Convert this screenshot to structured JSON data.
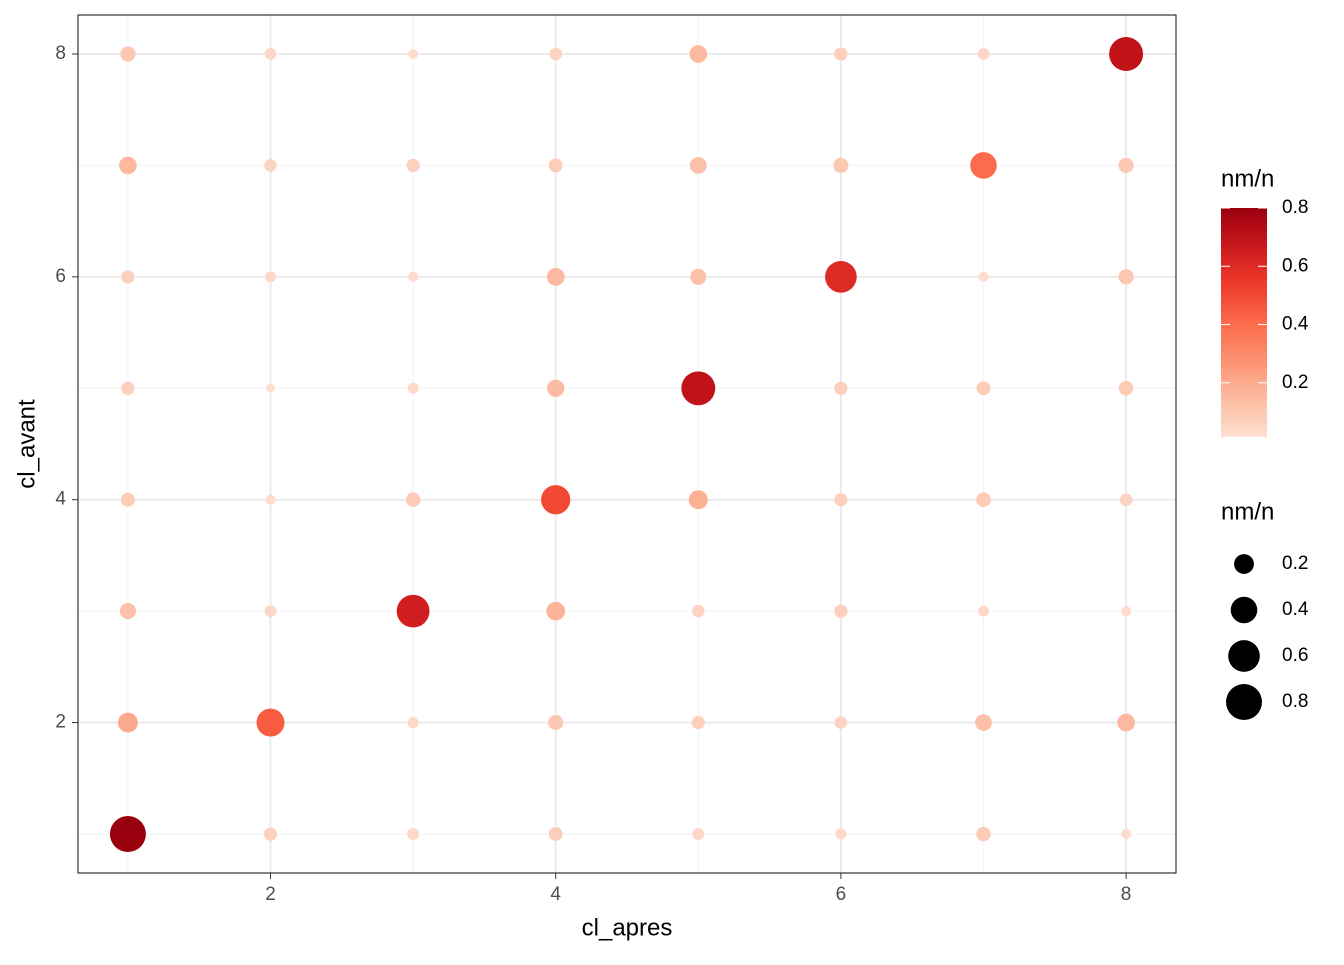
{
  "chart_data": {
    "type": "scatter",
    "x_label": "cl_apres",
    "y_label": "cl_avant",
    "x": [
      1,
      2,
      3,
      4,
      5,
      6,
      7,
      8,
      1,
      2,
      3,
      4,
      5,
      6,
      7,
      8,
      1,
      2,
      3,
      4,
      5,
      6,
      7,
      8,
      1,
      2,
      3,
      4,
      5,
      6,
      7,
      8,
      1,
      2,
      3,
      4,
      5,
      6,
      7,
      8,
      1,
      2,
      3,
      4,
      5,
      6,
      7,
      8,
      1,
      2,
      3,
      4,
      5,
      6,
      7,
      8,
      1,
      2,
      3,
      4,
      5,
      6,
      7,
      8
    ],
    "y": [
      1,
      1,
      1,
      1,
      1,
      1,
      1,
      1,
      2,
      2,
      2,
      2,
      2,
      2,
      2,
      2,
      3,
      3,
      3,
      3,
      3,
      3,
      3,
      3,
      4,
      4,
      4,
      4,
      4,
      4,
      4,
      4,
      5,
      5,
      5,
      5,
      5,
      5,
      5,
      5,
      6,
      6,
      6,
      6,
      6,
      6,
      6,
      6,
      7,
      7,
      7,
      7,
      7,
      7,
      7,
      7,
      8,
      8,
      8,
      8,
      8,
      8,
      8,
      8
    ],
    "values": [
      0.8,
      0.07,
      0.05,
      0.08,
      0.05,
      0.04,
      0.09,
      0.03,
      0.2,
      0.45,
      0.04,
      0.1,
      0.07,
      0.06,
      0.13,
      0.15,
      0.12,
      0.05,
      0.65,
      0.17,
      0.06,
      0.07,
      0.04,
      0.03,
      0.08,
      0.03,
      0.09,
      0.5,
      0.18,
      0.07,
      0.09,
      0.06,
      0.07,
      0.02,
      0.04,
      0.14,
      0.7,
      0.07,
      0.08,
      0.09,
      0.07,
      0.04,
      0.03,
      0.15,
      0.12,
      0.6,
      0.03,
      0.1,
      0.15,
      0.06,
      0.07,
      0.08,
      0.13,
      0.1,
      0.4,
      0.1,
      0.1,
      0.05,
      0.03,
      0.06,
      0.15,
      0.07,
      0.05,
      0.7
    ],
    "xlim": [
      0.65,
      8.35
    ],
    "ylim": [
      0.65,
      8.35
    ],
    "xticks": [
      2,
      4,
      6,
      8
    ],
    "yticks": [
      2,
      4,
      6,
      8
    ],
    "grid": true,
    "color_title": "nm/n",
    "color_range": [
      0.014,
      0.8
    ],
    "color_ticks": [
      0.2,
      0.4,
      0.6,
      0.8
    ],
    "colors": [
      "#fee0d2",
      "#fcbba1",
      "#fc9272",
      "#fb6a4a",
      "#ef3b2c",
      "#cb181d",
      "#99000d"
    ],
    "size_title": "nm/n",
    "size_breaks": [
      0.2,
      0.4,
      0.6,
      0.8
    ]
  }
}
